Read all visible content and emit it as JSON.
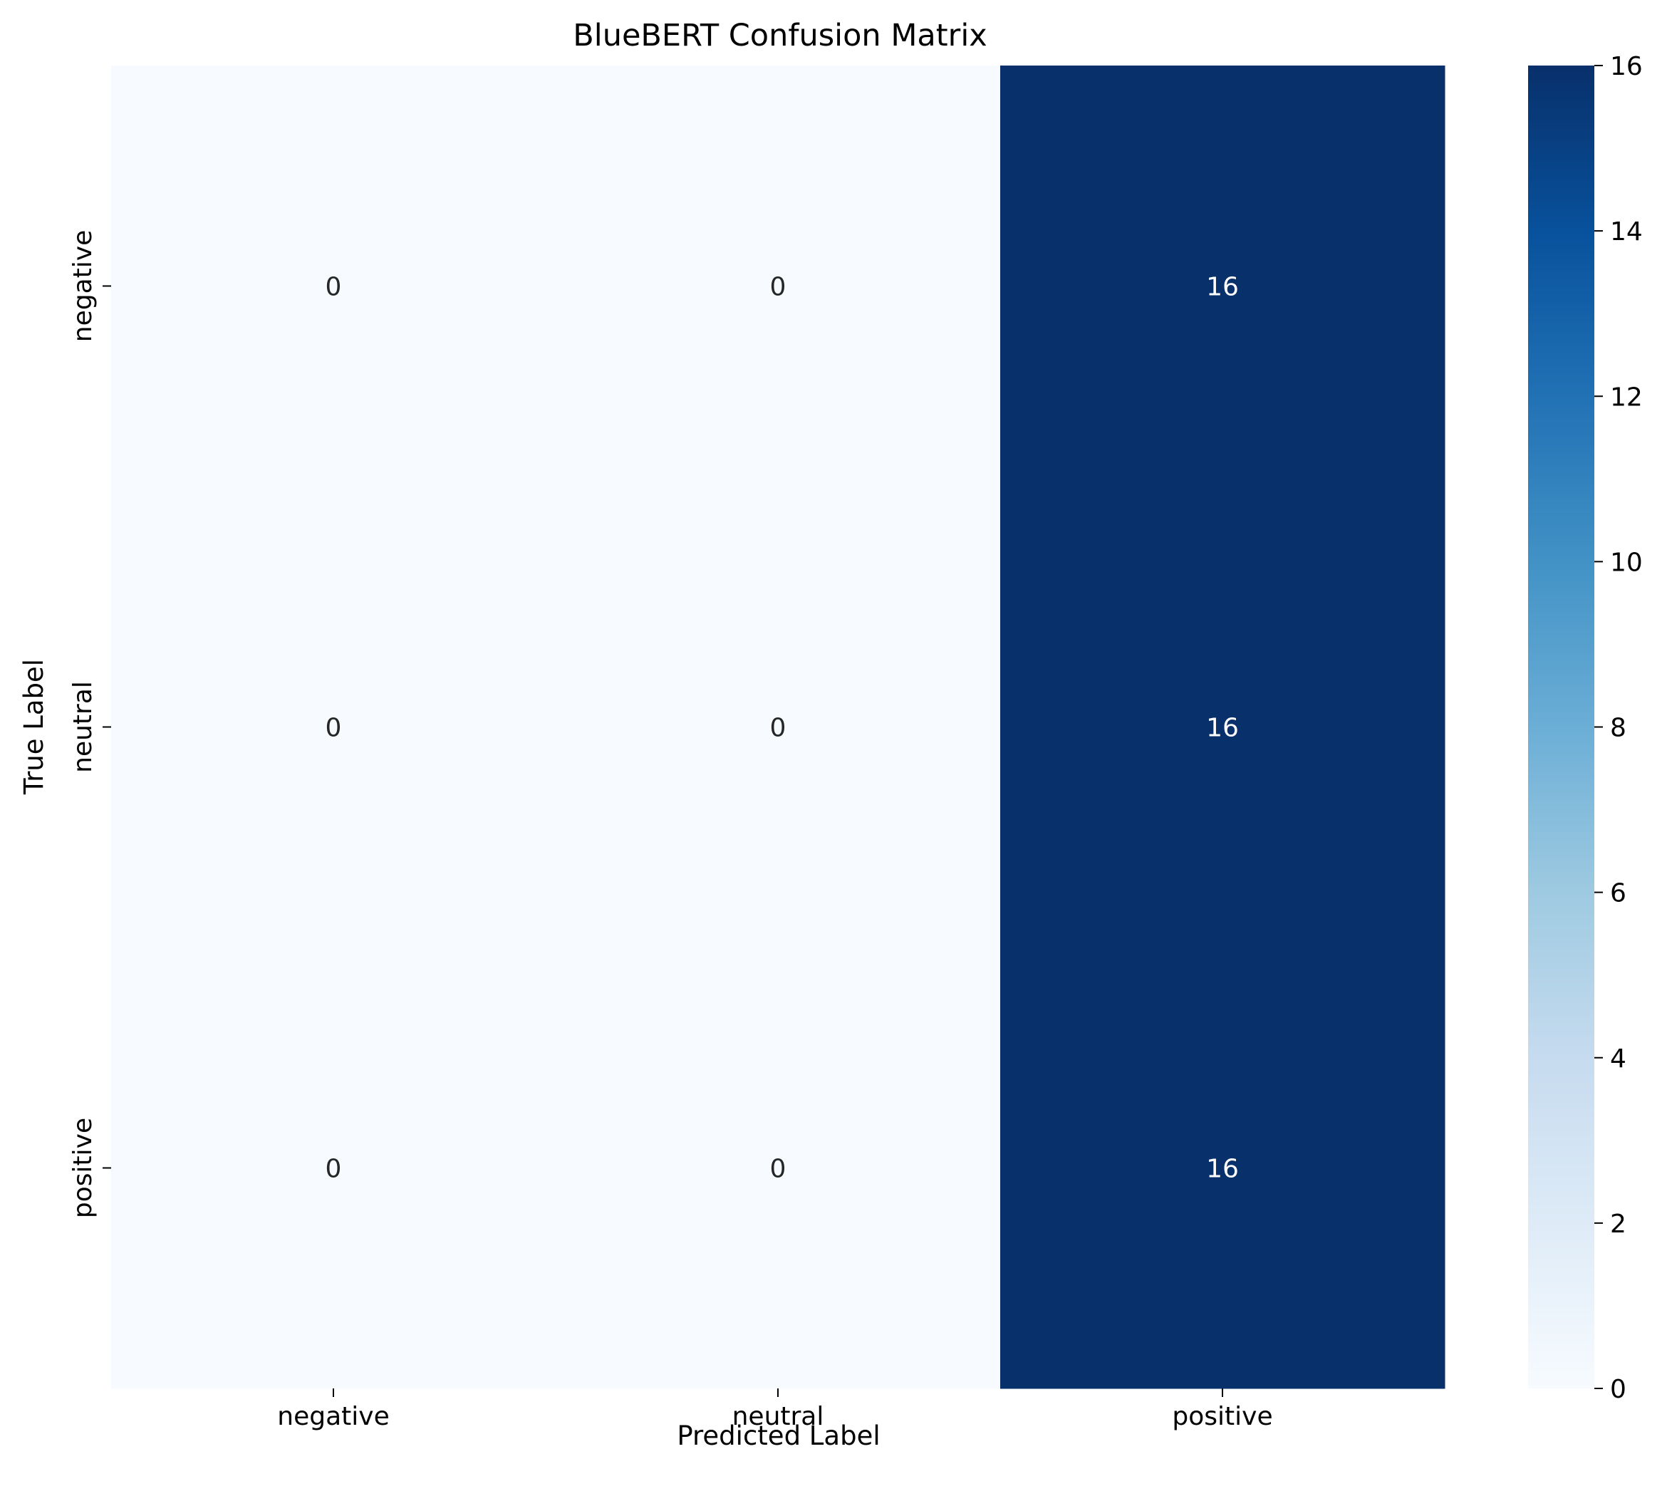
{
  "chart_data": {
    "type": "heatmap",
    "title": "BlueBERT Confusion Matrix",
    "xlabel": "Predicted Label",
    "ylabel": "True Label",
    "x_categories": [
      "negative",
      "neutral",
      "positive"
    ],
    "y_categories": [
      "negative",
      "neutral",
      "positive"
    ],
    "values": [
      [
        0,
        0,
        16
      ],
      [
        0,
        0,
        16
      ],
      [
        0,
        0,
        16
      ]
    ],
    "colorbar": {
      "range": [
        0,
        16
      ],
      "ticks": [
        0,
        2,
        4,
        6,
        8,
        10,
        12,
        14,
        16
      ],
      "colormap": "Blues",
      "low_color": "#f7fbff",
      "high_color": "#08306b"
    },
    "annotations": true,
    "grid": false
  }
}
